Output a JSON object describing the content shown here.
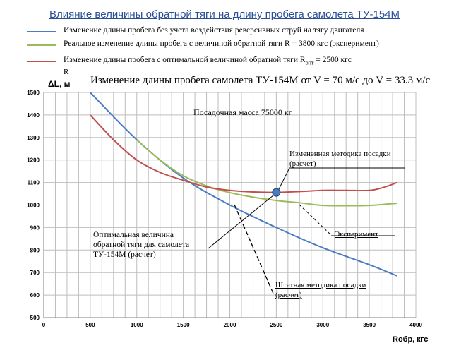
{
  "header": {
    "title": "Влияние величины обратной тяги на длину пробега самолета ТУ-154М"
  },
  "legend": [
    {
      "label": "Изменение длины пробега без учета воздействия реверсивных струй на тягу двигателя",
      "color": "#4a7cc4"
    },
    {
      "label": "Реальное изменение длины пробега с величиной обратной тяги R = 3800 кгс (эксперимент)",
      "color": "#9bbb59"
    },
    {
      "label": "Изменение длины пробега с  оптимальной величиной обратной тяги R",
      "sub": "опт",
      "tail": " = 2500 кгс",
      "color": "#c0504d"
    }
  ],
  "chart_data": {
    "type": "line",
    "title": "Изменение длины  пробега самолета ТУ-154М от V = 70 м/с до V = 33.3  м/с",
    "ylabel_top": "R",
    "ylabel": "ΔL, м",
    "xlabel": "Rобр, кгс",
    "xlim": [
      0,
      4000
    ],
    "ylim": [
      500,
      1500
    ],
    "x_ticks": [
      0,
      500,
      1000,
      1500,
      2000,
      2500,
      3000,
      3500,
      4000
    ],
    "y_ticks": [
      500,
      600,
      700,
      800,
      900,
      1000,
      1100,
      1200,
      1300,
      1400,
      1500
    ],
    "grid": true,
    "series": [
      {
        "key": "blue",
        "color": "#4a7cc4",
        "x": [
          500,
          1000,
          1500,
          2000,
          2500,
          3000,
          3500,
          3800
        ],
        "y": [
          1500,
          1290,
          1120,
          1000,
          900,
          810,
          735,
          685
        ]
      },
      {
        "key": "green",
        "color": "#9bbb59",
        "x": [
          1000,
          1250,
          1500,
          1750,
          2000,
          2250,
          2500,
          2750,
          3000,
          3250,
          3500,
          3800
        ],
        "y": [
          1290,
          1200,
          1130,
          1085,
          1055,
          1035,
          1020,
          1010,
          998,
          997,
          998,
          1008
        ]
      },
      {
        "key": "red",
        "color": "#c0504d",
        "x": [
          500,
          750,
          1000,
          1250,
          1500,
          1750,
          2000,
          2250,
          2500,
          2750,
          3000,
          3250,
          3500,
          3650,
          3800
        ],
        "y": [
          1400,
          1290,
          1200,
          1145,
          1110,
          1080,
          1065,
          1058,
          1056,
          1060,
          1065,
          1065,
          1065,
          1078,
          1100
        ]
      }
    ],
    "optimum_point": {
      "x": 2500,
      "y": 1056
    },
    "annotations": {
      "mass": "Посадочная масса 75000  кг",
      "modified_method": [
        "Измененная методика посадки",
        "(расчет)"
      ],
      "optimal_value": [
        "Оптимальная величина",
        "обратной тяги для  самолета",
        "ТУ-154М  (расчет)"
      ],
      "experiment": "Эксперимент",
      "standard_method": [
        "Штатная  методика посадки",
        "(расчет)"
      ]
    }
  }
}
